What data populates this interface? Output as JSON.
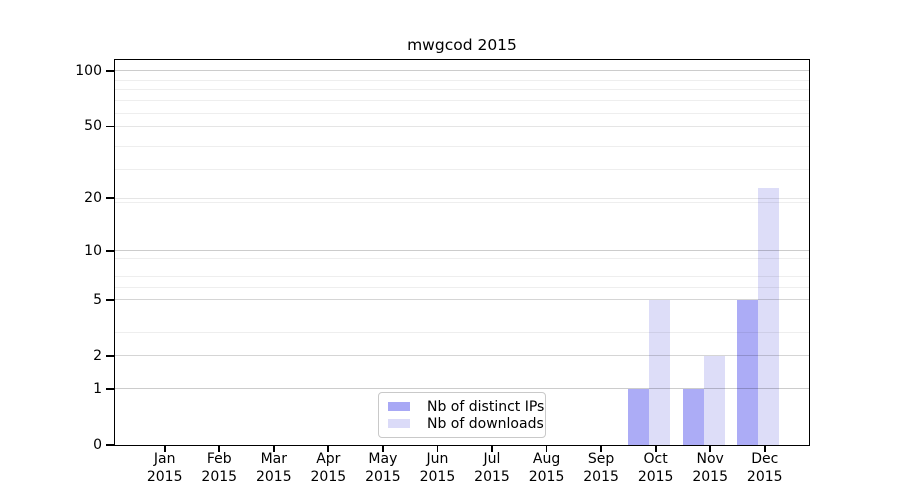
{
  "chart_data": {
    "type": "bar",
    "title": "mwgcod 2015",
    "categories": [
      "Jan",
      "Feb",
      "Mar",
      "Apr",
      "May",
      "Jun",
      "Jul",
      "Aug",
      "Sep",
      "Oct",
      "Nov",
      "Dec"
    ],
    "year_label": "2015",
    "series": [
      {
        "name": "Nb of distinct IPs",
        "color": "#a8a8f5",
        "values": [
          0,
          0,
          0,
          0,
          0,
          0,
          0,
          0,
          0,
          1,
          1,
          5
        ]
      },
      {
        "name": "Nb of downloads",
        "color": "#dbdbf8",
        "values": [
          0,
          0,
          0,
          0,
          0,
          0,
          0,
          0,
          0,
          5,
          2,
          23
        ]
      }
    ],
    "xlabel": "",
    "ylabel": "",
    "y_ticks": [
      0,
      1,
      2,
      5,
      10,
      20,
      50,
      100
    ],
    "y_scale": "log10(1+y)",
    "ylim": [
      0,
      115
    ],
    "grid": true,
    "legend_position": "lower center"
  }
}
